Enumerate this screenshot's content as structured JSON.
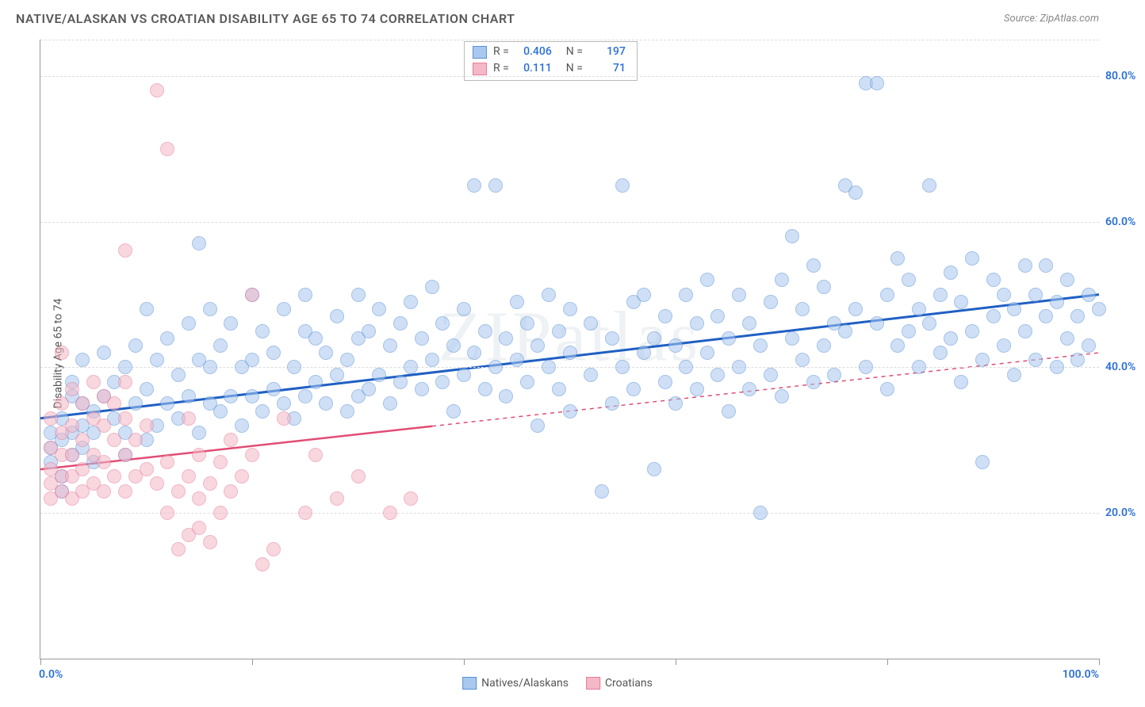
{
  "title": "NATIVE/ALASKAN VS CROATIAN DISABILITY AGE 65 TO 74 CORRELATION CHART",
  "source_label": "Source:",
  "source_name": "ZipAtlas.com",
  "ylabel": "Disability Age 65 to 74",
  "watermark": "ZIPatlas",
  "chart": {
    "type": "scatter",
    "xlim": [
      0,
      100
    ],
    "ylim": [
      0,
      85
    ],
    "y_ticks": [
      20,
      40,
      60,
      80
    ],
    "y_tick_labels": [
      "20.0%",
      "40.0%",
      "60.0%",
      "80.0%"
    ],
    "y_tick_color": "#2a6fd6",
    "x_min_label": "0.0%",
    "x_max_label": "100.0%",
    "x_ticks": [
      0,
      20,
      40,
      60,
      80,
      100
    ],
    "grid_color": "#dddddd",
    "axis_color": "#999999",
    "background_color": "#ffffff",
    "marker_size": 18,
    "series": [
      {
        "name": "Natives/Alaskans",
        "fill": "#a8c8ef",
        "stroke": "#5b8fd6",
        "line_color": "#1f5fc4",
        "r": "0.406",
        "n": "197",
        "trend": {
          "x1": 0,
          "y1": 33,
          "x2": 100,
          "y2": 50,
          "dashed_from": null
        },
        "points": [
          [
            1,
            27
          ],
          [
            1,
            29
          ],
          [
            1,
            31
          ],
          [
            2,
            23
          ],
          [
            2,
            25
          ],
          [
            2,
            30
          ],
          [
            2,
            33
          ],
          [
            3,
            28
          ],
          [
            3,
            31
          ],
          [
            3,
            36
          ],
          [
            3,
            38
          ],
          [
            4,
            29
          ],
          [
            4,
            32
          ],
          [
            4,
            35
          ],
          [
            4,
            41
          ],
          [
            5,
            27
          ],
          [
            5,
            31
          ],
          [
            5,
            34
          ],
          [
            6,
            36
          ],
          [
            6,
            42
          ],
          [
            7,
            33
          ],
          [
            7,
            38
          ],
          [
            8,
            28
          ],
          [
            8,
            31
          ],
          [
            8,
            40
          ],
          [
            9,
            35
          ],
          [
            9,
            43
          ],
          [
            10,
            30
          ],
          [
            10,
            37
          ],
          [
            10,
            48
          ],
          [
            11,
            32
          ],
          [
            11,
            41
          ],
          [
            12,
            35
          ],
          [
            12,
            44
          ],
          [
            13,
            33
          ],
          [
            13,
            39
          ],
          [
            14,
            36
          ],
          [
            14,
            46
          ],
          [
            15,
            31
          ],
          [
            15,
            41
          ],
          [
            15,
            57
          ],
          [
            16,
            35
          ],
          [
            16,
            40
          ],
          [
            16,
            48
          ],
          [
            17,
            34
          ],
          [
            17,
            43
          ],
          [
            18,
            36
          ],
          [
            18,
            46
          ],
          [
            19,
            32
          ],
          [
            19,
            40
          ],
          [
            20,
            36
          ],
          [
            20,
            41
          ],
          [
            20,
            50
          ],
          [
            21,
            34
          ],
          [
            21,
            45
          ],
          [
            22,
            37
          ],
          [
            22,
            42
          ],
          [
            23,
            35
          ],
          [
            23,
            48
          ],
          [
            24,
            33
          ],
          [
            24,
            40
          ],
          [
            25,
            36
          ],
          [
            25,
            45
          ],
          [
            25,
            50
          ],
          [
            26,
            38
          ],
          [
            26,
            44
          ],
          [
            27,
            35
          ],
          [
            27,
            42
          ],
          [
            28,
            39
          ],
          [
            28,
            47
          ],
          [
            29,
            34
          ],
          [
            29,
            41
          ],
          [
            30,
            36
          ],
          [
            30,
            44
          ],
          [
            30,
            50
          ],
          [
            31,
            37
          ],
          [
            31,
            45
          ],
          [
            32,
            39
          ],
          [
            32,
            48
          ],
          [
            33,
            35
          ],
          [
            33,
            43
          ],
          [
            34,
            38
          ],
          [
            34,
            46
          ],
          [
            35,
            40
          ],
          [
            35,
            49
          ],
          [
            36,
            37
          ],
          [
            36,
            44
          ],
          [
            37,
            41
          ],
          [
            37,
            51
          ],
          [
            38,
            38
          ],
          [
            38,
            46
          ],
          [
            39,
            34
          ],
          [
            39,
            43
          ],
          [
            40,
            39
          ],
          [
            40,
            48
          ],
          [
            41,
            42
          ],
          [
            41,
            65
          ],
          [
            42,
            37
          ],
          [
            42,
            45
          ],
          [
            43,
            40
          ],
          [
            43,
            65
          ],
          [
            44,
            36
          ],
          [
            44,
            44
          ],
          [
            45,
            41
          ],
          [
            45,
            49
          ],
          [
            46,
            38
          ],
          [
            46,
            46
          ],
          [
            47,
            32
          ],
          [
            47,
            43
          ],
          [
            48,
            40
          ],
          [
            48,
            50
          ],
          [
            49,
            37
          ],
          [
            49,
            45
          ],
          [
            50,
            34
          ],
          [
            50,
            42
          ],
          [
            50,
            48
          ],
          [
            52,
            39
          ],
          [
            52,
            46
          ],
          [
            53,
            23
          ],
          [
            54,
            35
          ],
          [
            54,
            44
          ],
          [
            55,
            40
          ],
          [
            55,
            65
          ],
          [
            56,
            37
          ],
          [
            56,
            49
          ],
          [
            57,
            42
          ],
          [
            57,
            50
          ],
          [
            58,
            26
          ],
          [
            58,
            44
          ],
          [
            59,
            38
          ],
          [
            59,
            47
          ],
          [
            60,
            35
          ],
          [
            60,
            43
          ],
          [
            61,
            40
          ],
          [
            61,
            50
          ],
          [
            62,
            37
          ],
          [
            62,
            46
          ],
          [
            63,
            42
          ],
          [
            63,
            52
          ],
          [
            64,
            39
          ],
          [
            64,
            47
          ],
          [
            65,
            34
          ],
          [
            65,
            44
          ],
          [
            66,
            40
          ],
          [
            66,
            50
          ],
          [
            67,
            37
          ],
          [
            67,
            46
          ],
          [
            68,
            20
          ],
          [
            68,
            43
          ],
          [
            69,
            39
          ],
          [
            69,
            49
          ],
          [
            70,
            36
          ],
          [
            70,
            52
          ],
          [
            71,
            44
          ],
          [
            71,
            58
          ],
          [
            72,
            41
          ],
          [
            72,
            48
          ],
          [
            73,
            38
          ],
          [
            73,
            54
          ],
          [
            74,
            43
          ],
          [
            74,
            51
          ],
          [
            75,
            39
          ],
          [
            75,
            46
          ],
          [
            76,
            45
          ],
          [
            76,
            65
          ],
          [
            77,
            48
          ],
          [
            77,
            64
          ],
          [
            78,
            40
          ],
          [
            78,
            79
          ],
          [
            79,
            46
          ],
          [
            79,
            79
          ],
          [
            80,
            37
          ],
          [
            80,
            50
          ],
          [
            81,
            43
          ],
          [
            81,
            55
          ],
          [
            82,
            45
          ],
          [
            82,
            52
          ],
          [
            83,
            40
          ],
          [
            83,
            48
          ],
          [
            84,
            46
          ],
          [
            84,
            65
          ],
          [
            85,
            42
          ],
          [
            85,
            50
          ],
          [
            86,
            44
          ],
          [
            86,
            53
          ],
          [
            87,
            38
          ],
          [
            87,
            49
          ],
          [
            88,
            45
          ],
          [
            88,
            55
          ],
          [
            89,
            41
          ],
          [
            89,
            27
          ],
          [
            90,
            47
          ],
          [
            90,
            52
          ],
          [
            91,
            43
          ],
          [
            91,
            50
          ],
          [
            92,
            39
          ],
          [
            92,
            48
          ],
          [
            93,
            45
          ],
          [
            93,
            54
          ],
          [
            94,
            41
          ],
          [
            94,
            50
          ],
          [
            95,
            47
          ],
          [
            95,
            54
          ],
          [
            96,
            40
          ],
          [
            96,
            49
          ],
          [
            97,
            44
          ],
          [
            97,
            52
          ],
          [
            98,
            47
          ],
          [
            98,
            41
          ],
          [
            99,
            50
          ],
          [
            99,
            43
          ],
          [
            100,
            48
          ]
        ]
      },
      {
        "name": "Croatians",
        "fill": "#f4b8c6",
        "stroke": "#e67c9a",
        "line_color": "#e14d74",
        "r": "0.111",
        "n": "71",
        "trend": {
          "x1": 0,
          "y1": 26,
          "x2": 100,
          "y2": 42,
          "dashed_from": 37
        },
        "points": [
          [
            1,
            22
          ],
          [
            1,
            24
          ],
          [
            1,
            26
          ],
          [
            1,
            29
          ],
          [
            1,
            33
          ],
          [
            2,
            23
          ],
          [
            2,
            25
          ],
          [
            2,
            28
          ],
          [
            2,
            31
          ],
          [
            2,
            35
          ],
          [
            2,
            42
          ],
          [
            3,
            22
          ],
          [
            3,
            25
          ],
          [
            3,
            28
          ],
          [
            3,
            32
          ],
          [
            3,
            37
          ],
          [
            4,
            23
          ],
          [
            4,
            26
          ],
          [
            4,
            30
          ],
          [
            4,
            35
          ],
          [
            5,
            24
          ],
          [
            5,
            28
          ],
          [
            5,
            33
          ],
          [
            5,
            38
          ],
          [
            6,
            23
          ],
          [
            6,
            27
          ],
          [
            6,
            32
          ],
          [
            6,
            36
          ],
          [
            7,
            25
          ],
          [
            7,
            30
          ],
          [
            7,
            35
          ],
          [
            8,
            23
          ],
          [
            8,
            28
          ],
          [
            8,
            33
          ],
          [
            8,
            38
          ],
          [
            8,
            56
          ],
          [
            9,
            25
          ],
          [
            9,
            30
          ],
          [
            10,
            26
          ],
          [
            10,
            32
          ],
          [
            11,
            24
          ],
          [
            11,
            78
          ],
          [
            12,
            20
          ],
          [
            12,
            27
          ],
          [
            12,
            70
          ],
          [
            13,
            15
          ],
          [
            13,
            23
          ],
          [
            14,
            17
          ],
          [
            14,
            25
          ],
          [
            14,
            33
          ],
          [
            15,
            18
          ],
          [
            15,
            22
          ],
          [
            15,
            28
          ],
          [
            16,
            16
          ],
          [
            16,
            24
          ],
          [
            17,
            20
          ],
          [
            17,
            27
          ],
          [
            18,
            23
          ],
          [
            18,
            30
          ],
          [
            19,
            25
          ],
          [
            20,
            28
          ],
          [
            20,
            50
          ],
          [
            21,
            13
          ],
          [
            22,
            15
          ],
          [
            23,
            33
          ],
          [
            25,
            20
          ],
          [
            26,
            28
          ],
          [
            28,
            22
          ],
          [
            30,
            25
          ],
          [
            33,
            20
          ],
          [
            35,
            22
          ]
        ]
      }
    ]
  },
  "legend_top": {
    "r_label": "R =",
    "n_label": "N ="
  },
  "legend_bottom": {
    "items": [
      "Natives/Alaskans",
      "Croatians"
    ]
  }
}
